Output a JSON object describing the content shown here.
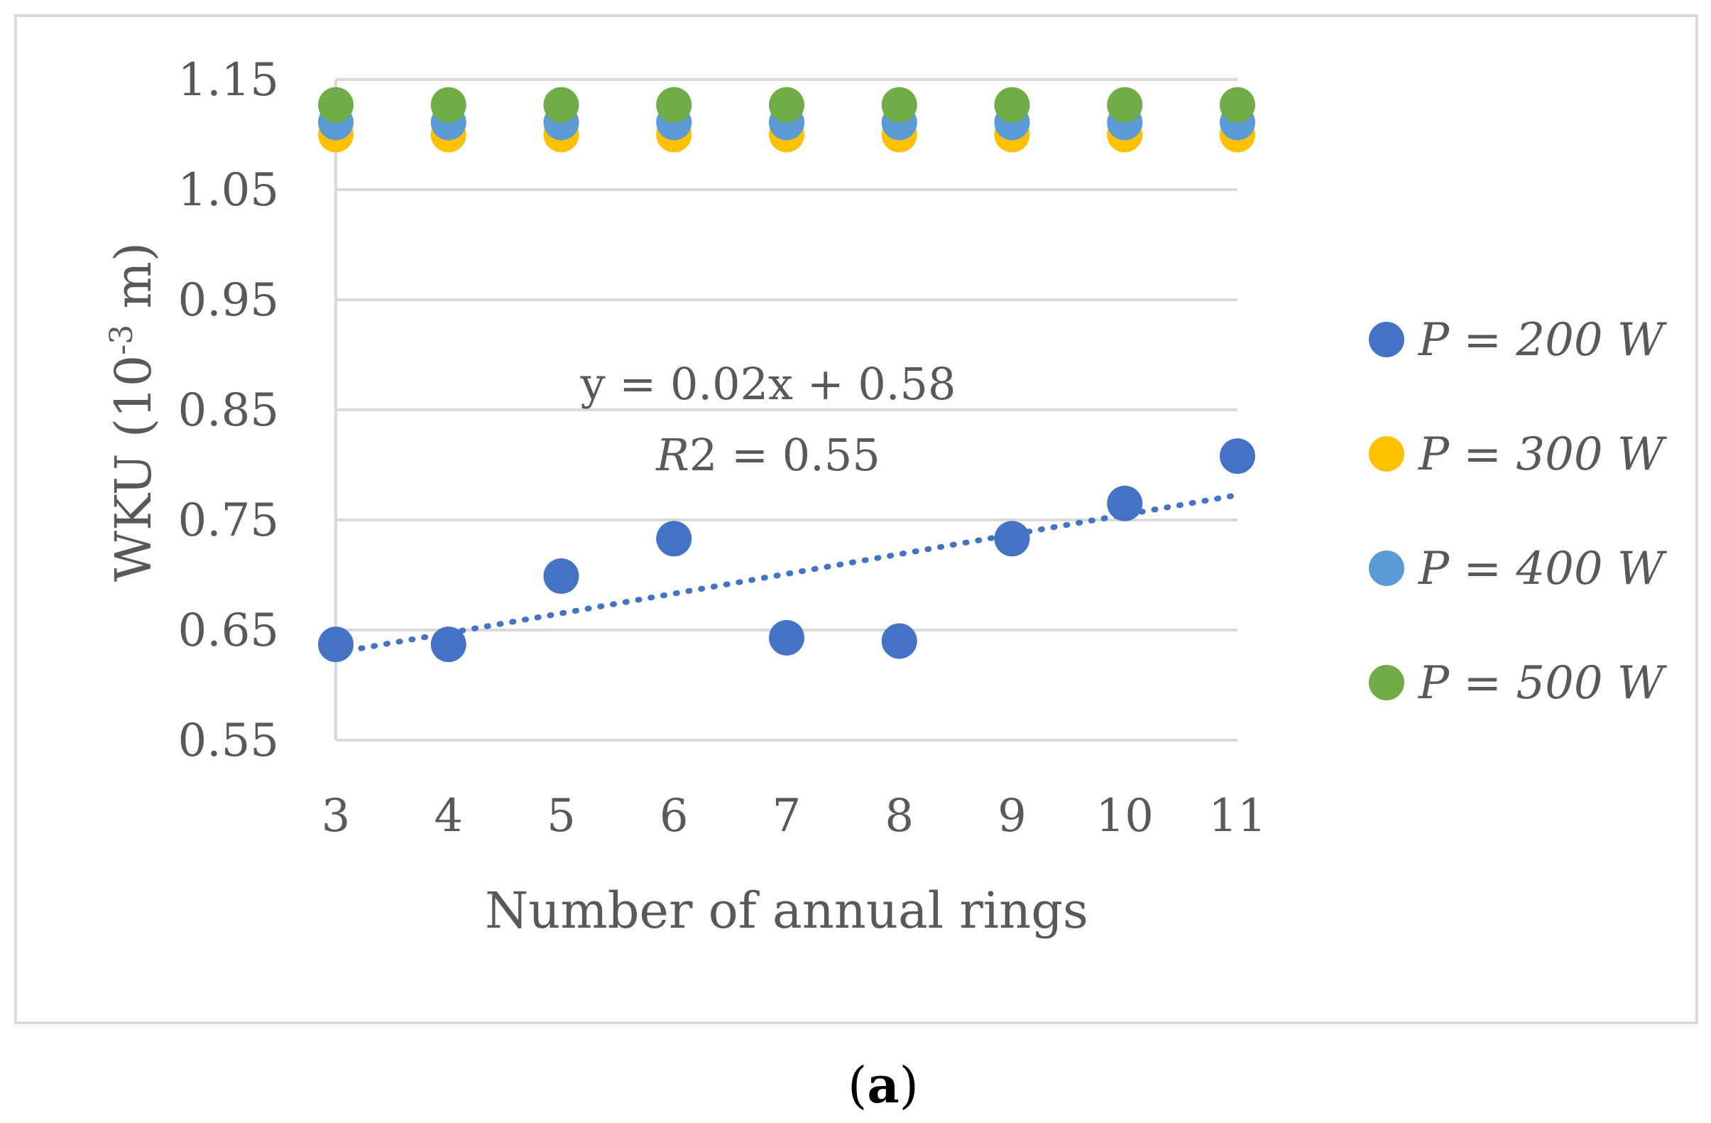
{
  "chart_data": {
    "type": "scatter",
    "title": "",
    "xlabel": "Number of annual rings",
    "ylabel": "WKU (10",
    "ylabel_sup": "-3",
    "ylabel_unit": " m)",
    "x": [
      3,
      4,
      5,
      6,
      7,
      8,
      9,
      10,
      11
    ],
    "xlim": [
      3,
      11
    ],
    "ylim": [
      0.55,
      1.15
    ],
    "y_ticks": [
      "0.55",
      "0.65",
      "0.75",
      "0.85",
      "0.95",
      "1.05",
      "1.15"
    ],
    "x_ticks": [
      "3",
      "4",
      "5",
      "6",
      "7",
      "8",
      "9",
      "10",
      "11"
    ],
    "grid": true,
    "legend_position": "right",
    "series": [
      {
        "name": "P = 200 W",
        "color": "#4472C4",
        "values": [
          0.637,
          0.637,
          0.699,
          0.733,
          0.643,
          0.64,
          0.733,
          0.765,
          0.808
        ]
      },
      {
        "name": "P = 300 W",
        "color": "#FFC000",
        "values": [
          1.1,
          1.1,
          1.1,
          1.1,
          1.1,
          1.1,
          1.1,
          1.1,
          1.1
        ]
      },
      {
        "name": "P = 400 W",
        "color": "#5B9BD5",
        "values": [
          1.111,
          1.111,
          1.111,
          1.111,
          1.111,
          1.111,
          1.111,
          1.111,
          1.111
        ]
      },
      {
        "name": "P = 500 W",
        "color": "#70AD47",
        "values": [
          1.127,
          1.127,
          1.127,
          1.127,
          1.127,
          1.127,
          1.127,
          1.127,
          1.127
        ]
      }
    ],
    "trendline": {
      "series": "P = 200 W",
      "slope": 0.0179,
      "intercept": 0.5757,
      "color": "#4472C4"
    },
    "annotations": {
      "equation": "y = 0.02x + 0.58",
      "r2_label": "R",
      "r2_sup": "2",
      "r2_value": " = 0.55"
    }
  },
  "caption": {
    "open": "(",
    "letter": "a",
    "close": ")"
  }
}
